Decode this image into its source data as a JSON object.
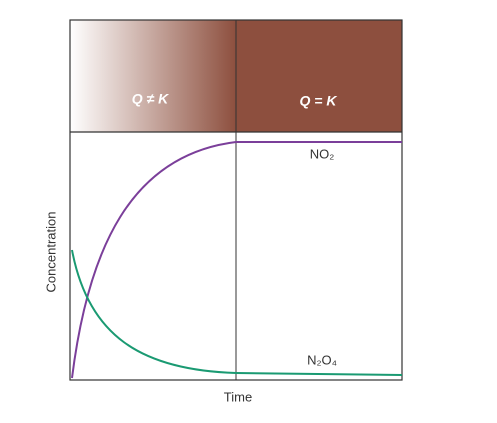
{
  "header": {
    "left": "Q ≠ K",
    "right": "Q = K"
  },
  "labels": {
    "top_curve": "NO₂",
    "bottom_curve": "N₂O₄"
  },
  "axes": {
    "x_label": "Time",
    "y_label": "Concentration"
  }
}
